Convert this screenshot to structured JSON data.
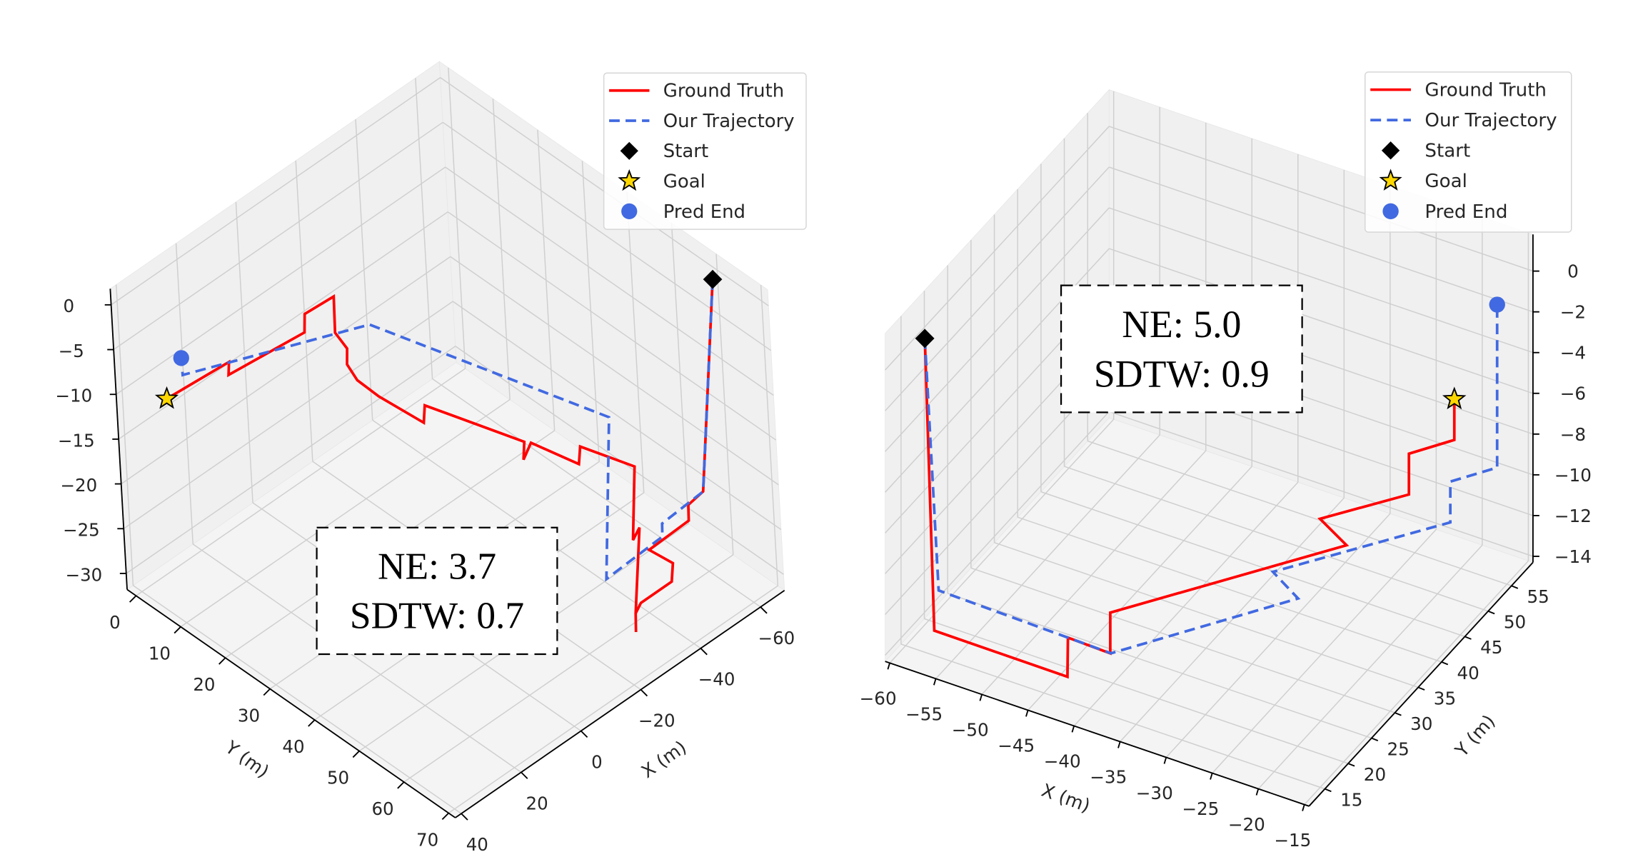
{
  "colors": {
    "ground_truth": "#FF0000",
    "trajectory": "#4169E1",
    "start": "#000000",
    "goal": "#FFD700",
    "pred_end": "#4169E1",
    "pane": "#f4f4f4",
    "grid": "#cfcfcf"
  },
  "chart_data": [
    {
      "type": "line3d",
      "title": "",
      "xlabel": "X (m)",
      "ylabel": "Y (m)",
      "xlim": [
        -68,
        42
      ],
      "ylim": [
        -2,
        71.5
      ],
      "zlim": [
        -31.8,
        1.8
      ],
      "xticks": [
        -60,
        -40,
        -20,
        0,
        20,
        40
      ],
      "yticks": [
        0,
        10,
        20,
        30,
        40,
        50,
        60,
        70
      ],
      "zticks": [
        0,
        -5,
        -10,
        -15,
        -20,
        -25,
        -30
      ],
      "grid": true,
      "legend_position": "top-right",
      "legend": [
        "Ground Truth",
        "Our Trajectory",
        "Start",
        "Goal",
        "Pred End"
      ],
      "annotation": [
        "NE: 3.7",
        "SDTW: 0.7"
      ],
      "series": [
        {
          "name": "Ground Truth",
          "style": "solid",
          "points": [
            [
              -65,
              61,
              0
            ],
            [
              -61,
              58.9,
              -23.5
            ],
            [
              -55.3,
              59.4,
              -23.5
            ],
            [
              -55.3,
              59.3,
              -25.3
            ],
            [
              -41.6,
              59.6,
              -25.3
            ],
            [
              -42.4,
              64.4,
              -25.3
            ],
            [
              -42.1,
              64.1,
              -27.4
            ],
            [
              -31.8,
              64.1,
              -27.4
            ],
            [
              -28.4,
              65.2,
              -27.4
            ],
            [
              -28.3,
              65.1,
              -29.5
            ],
            [
              -28.4,
              65.2,
              -27.4
            ],
            [
              -29.8,
              66.2,
              -17.8
            ],
            [
              -28.6,
              65.4,
              -19.2
            ],
            [
              -29.6,
              66.0,
              -11
            ],
            [
              -25.3,
              56.7,
              -11
            ],
            [
              -25.0,
              56.4,
              -13
            ],
            [
              -22.1,
              47.6,
              -13
            ],
            [
              -20.5,
              46.8,
              -14.8
            ],
            [
              -20.8,
              47.0,
              -12.8
            ],
            [
              -12.9,
              30.0,
              -12.8
            ],
            [
              -12.7,
              29.7,
              -14.8
            ],
            [
              -11.5,
              20.4,
              -14.8
            ],
            [
              -11.8,
              15.4,
              -14.8
            ],
            [
              -13.9,
              11.7,
              -14.8
            ],
            [
              -13.8,
              12.0,
              -12.9
            ],
            [
              -15.6,
              8.1,
              -12.9
            ],
            [
              -15.8,
              8.1,
              -8.9
            ],
            [
              -6.7,
              7.7,
              -8.9
            ],
            [
              -6.6,
              7.5,
              -11
            ],
            [
              16.4,
              5.9,
              -11
            ],
            [
              16.3,
              6.1,
              -9.5
            ],
            [
              35.6,
              5.1,
              -9.5
            ]
          ]
        },
        {
          "name": "Our Trajectory",
          "style": "dashed",
          "points": [
            [
              -65,
              61,
              0
            ],
            [
              -61,
              58.9,
              -23.5
            ],
            [
              -46.4,
              59.5,
              -23.5
            ],
            [
              -46.4,
              59.4,
              -25
            ],
            [
              -26.8,
              60.0,
              -25
            ],
            [
              -28.9,
              61.2,
              -7
            ],
            [
              -11.1,
              19.5,
              -7
            ],
            [
              32.4,
              6.8,
              -7
            ],
            [
              32.7,
              6.9,
              -5
            ]
          ]
        }
      ],
      "markers": {
        "start": [
          -65,
          61,
          0
        ],
        "goal": [
          35.6,
          5.1,
          -9.5
        ],
        "pred_end": [
          32.7,
          6.9,
          -5
        ]
      }
    },
    {
      "type": "line3d",
      "title": "",
      "xlabel": "X (m)",
      "ylabel": "Y (m)",
      "xlim": [
        -60.5,
        -14.5
      ],
      "ylim": [
        11.6,
        59.6
      ],
      "zlim": [
        -14.3,
        1.8
      ],
      "xticks": [
        -60,
        -55,
        -50,
        -45,
        -40,
        -35,
        -30,
        -25,
        -20,
        -15
      ],
      "yticks": [
        15,
        20,
        25,
        30,
        35,
        40,
        45,
        50,
        55
      ],
      "zticks": [
        0,
        -2,
        -4,
        -6,
        -8,
        -10,
        -12,
        -14
      ],
      "grid": true,
      "legend_position": "top-right",
      "legend": [
        "Ground Truth",
        "Our Trajectory",
        "Start",
        "Goal",
        "Pred End"
      ],
      "annotation": [
        "NE: 5.0",
        "SDTW: 0.9"
      ],
      "series": [
        {
          "name": "Ground Truth",
          "style": "solid",
          "points": [
            [
              -60.4,
              19.9,
              -0.5
            ],
            [
              -58.0,
              17.2,
              -13.8
            ],
            [
              -43.5,
              17.1,
              -13.8
            ],
            [
              -43.5,
              17.2,
              -11.9
            ],
            [
              -38.8,
              17.0,
              -11.9
            ],
            [
              -38.8,
              17.0,
              -9.9
            ],
            [
              -24.4,
              39.2,
              -9.9
            ],
            [
              -28.6,
              41.8,
              -9.9
            ],
            [
              -23.1,
              50.0,
              -9.9
            ],
            [
              -23.1,
              50.0,
              -7.9
            ],
            [
              -20.4,
              54.4,
              -7.9
            ],
            [
              -20.4,
              54.4,
              -5.9
            ]
          ]
        },
        {
          "name": "Our Trajectory",
          "style": "dashed",
          "points": [
            [
              -60.4,
              19.9,
              -0.5
            ],
            [
              -59.3,
              20.7,
              -12.9
            ],
            [
              -40.3,
              20.1,
              -12.9
            ],
            [
              -29.0,
              37.9,
              -12.9
            ],
            [
              -33.1,
              40.6,
              -12.9
            ],
            [
              -22.2,
              57.1,
              -12.9
            ],
            [
              -22.2,
              57.1,
              -10.9
            ],
            [
              -19.4,
              61.6,
              -10.9
            ],
            [
              -19.4,
              61.6,
              -2.9
            ]
          ]
        }
      ],
      "markers": {
        "start": [
          -60.4,
          19.9,
          -0.5
        ],
        "goal": [
          -20.4,
          54.4,
          -5.9
        ],
        "pred_end": [
          -19.4,
          61.6,
          -2.9
        ]
      }
    }
  ]
}
